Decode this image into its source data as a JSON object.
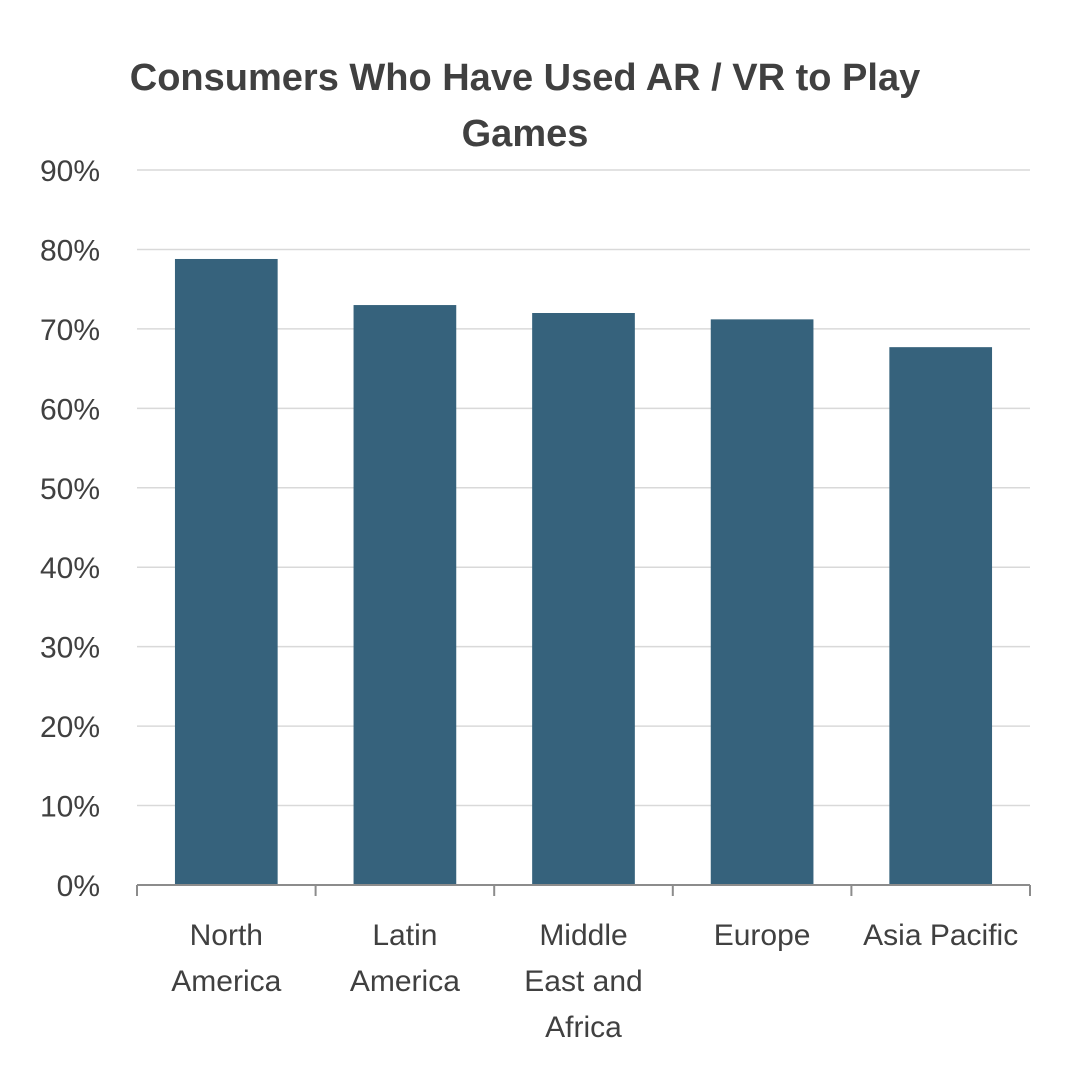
{
  "chart_data": {
    "type": "bar",
    "title_lines": [
      "Consumers Who Have Used AR / VR to Play",
      "Games"
    ],
    "categories": [
      [
        "North",
        "America"
      ],
      [
        "Latin",
        "America"
      ],
      [
        "Middle",
        "East and",
        "Africa"
      ],
      [
        "Europe"
      ],
      [
        "Asia Pacific"
      ]
    ],
    "values": [
      78.8,
      73.0,
      72.0,
      71.2,
      67.7
    ],
    "ylim": [
      0,
      90
    ],
    "yticks": [
      0,
      10,
      20,
      30,
      40,
      50,
      60,
      70,
      80,
      90
    ],
    "ytick_labels": [
      "0%",
      "10%",
      "20%",
      "30%",
      "40%",
      "50%",
      "60%",
      "70%",
      "80%",
      "90%"
    ],
    "grid": true,
    "legend": "none",
    "colors": {
      "bar": "#36627c",
      "text": "#404040",
      "grid": "#d9d9d9",
      "axis": "#8c8c8c"
    }
  }
}
